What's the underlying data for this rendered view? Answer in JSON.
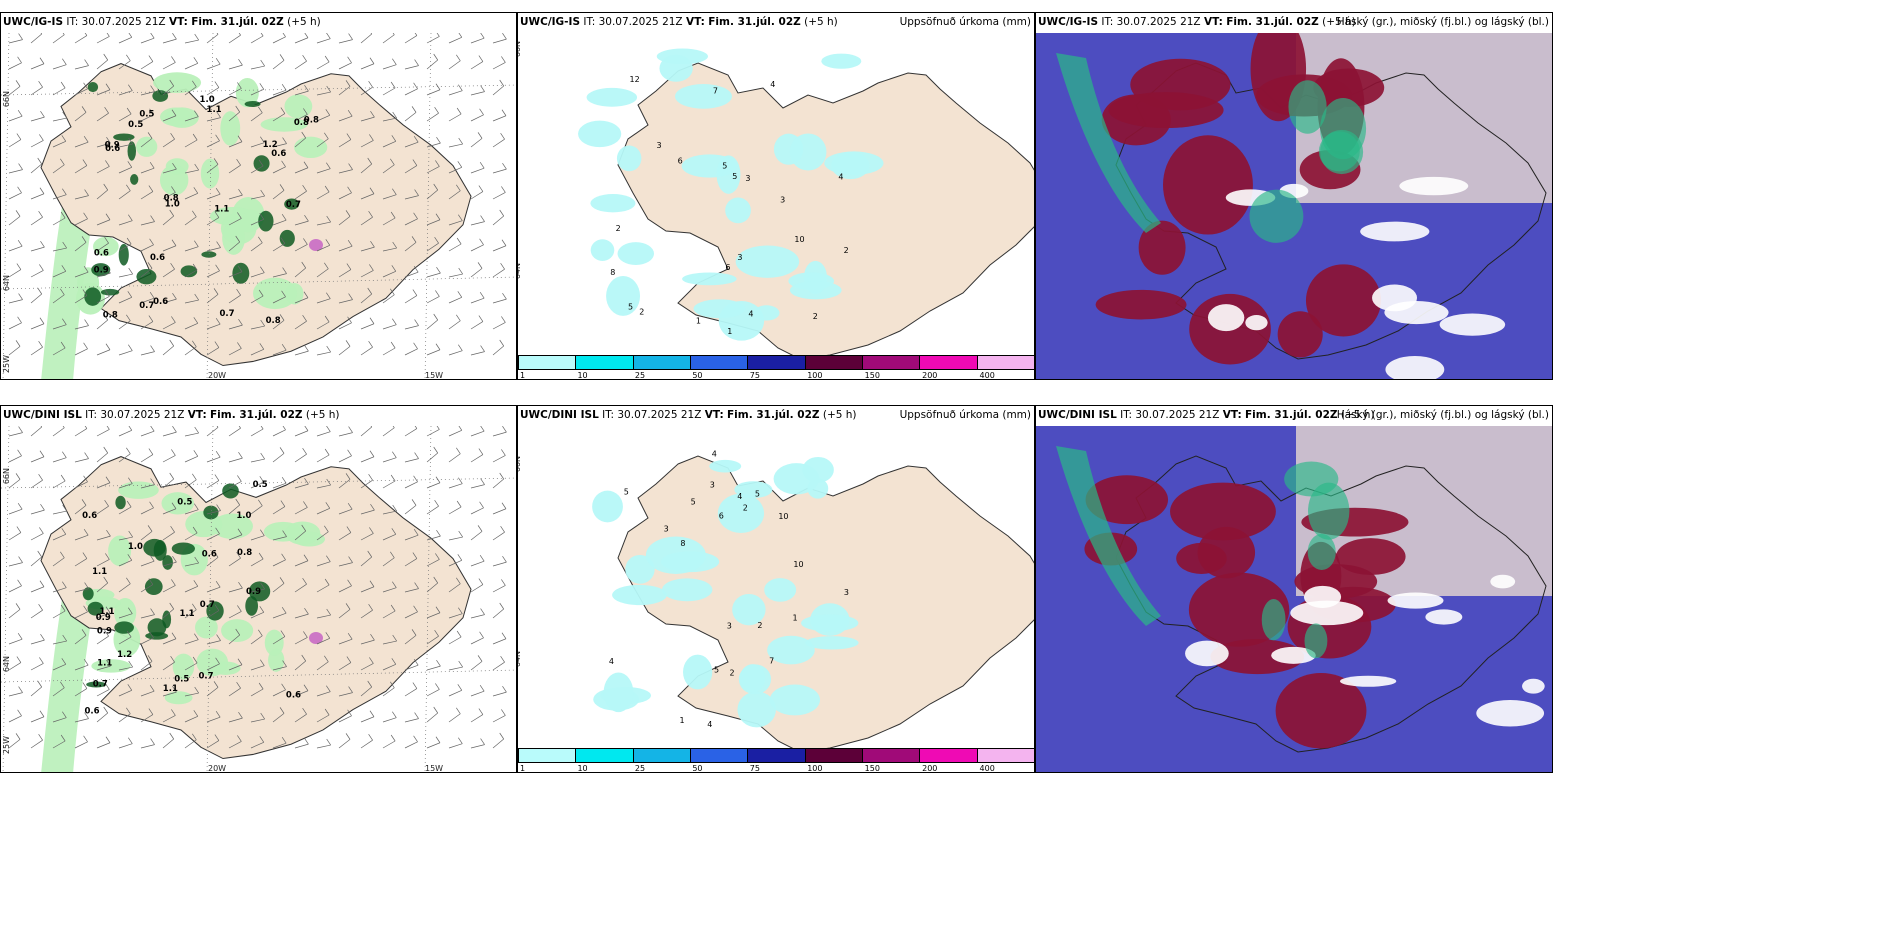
{
  "rows": [
    {
      "model": "UWC/IG-IS",
      "it_label": "IT:",
      "it_value": "30.07.2025 21Z",
      "vt_label": "VT:",
      "vt_value": "Fim. 31.júl. 02Z",
      "lead": "(+5 h)"
    },
    {
      "model": "UWC/DINI ISL",
      "it_label": "IT:",
      "it_value": "30.07.2025 21Z",
      "vt_label": "VT:",
      "vt_value": "Fim. 31.júl. 02Z",
      "lead": "(+5 h)"
    }
  ],
  "precip_title": "Uppsöfnuð úrkoma (mm)",
  "cloud_title": "Háský (gr.), miðský (fj.bl.) og lágský (bl.)",
  "axes": {
    "lat66": "66N",
    "lat64": "64N",
    "lon25": "25W",
    "lon20": "20W",
    "lon15": "15W"
  },
  "colorbar": {
    "labels": [
      "1",
      "10",
      "25",
      "50",
      "75",
      "100",
      "150",
      "200",
      "400"
    ],
    "colors": [
      "#b9fbfb",
      "#00e8ef",
      "#14b4e6",
      "#2a62e6",
      "#1a1fa3",
      "#5c0038",
      "#a00a78",
      "#ef0ab4",
      "#f4b4ef"
    ]
  },
  "colors": {
    "land": "#f3e3d2",
    "precip_light": "#b6f8f8",
    "green_light": "#b9f0b9",
    "green_dark": "#0e5a22",
    "cloud_high": "#29b887",
    "cloud_mid": "#8c1234",
    "cloud_low": "#4d4dc0"
  },
  "panel1_labels_top": [
    "0.5",
    "0.7",
    "1.0",
    "0.8",
    "0.9",
    "0.6",
    "1.1",
    "0.7",
    "0.6",
    "0.8",
    "1.2",
    "0.5",
    "0.9",
    "0.8",
    "0.6",
    "1.1",
    "0.8",
    "0.6",
    "1.0",
    "0.7",
    "0.6",
    "0.8"
  ],
  "panel1_labels_bot": [
    "0.5",
    "1.0",
    "0.8",
    "1.0",
    "0.7",
    "0.9",
    "0.6",
    "1.1",
    "0.7",
    "1.2",
    "0.9",
    "1.1",
    "0.5",
    "0.6",
    "1.1",
    "0.9",
    "0.7",
    "1.1",
    "0.6",
    "0.6",
    "0.5",
    "1.1"
  ],
  "panel2_labels_top": [
    "4",
    "7",
    "5",
    "8",
    "6",
    "1",
    "10",
    "6",
    "5",
    "12",
    "3",
    "2",
    "5",
    "4",
    "3",
    "2",
    "3",
    "2",
    "1",
    "4",
    "3",
    "2"
  ],
  "panel2_labels_bot": [
    "4",
    "2",
    "3",
    "5",
    "10",
    "6",
    "7",
    "5",
    "4",
    "3",
    "5",
    "4",
    "1",
    "2",
    "8",
    "3",
    "4",
    "10",
    "5",
    "3",
    "2",
    "1"
  ]
}
